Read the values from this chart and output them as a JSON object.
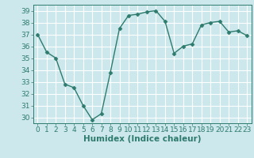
{
  "x": [
    0,
    1,
    2,
    3,
    4,
    5,
    6,
    7,
    8,
    9,
    10,
    11,
    12,
    13,
    14,
    15,
    16,
    17,
    18,
    19,
    20,
    21,
    22,
    23
  ],
  "y": [
    37.0,
    35.5,
    35.0,
    32.8,
    32.5,
    31.0,
    29.8,
    30.3,
    33.8,
    37.5,
    38.6,
    38.7,
    38.9,
    39.0,
    38.1,
    35.4,
    36.0,
    36.2,
    37.8,
    38.0,
    38.1,
    37.2,
    37.3,
    36.9
  ],
  "xlim": [
    -0.5,
    23.5
  ],
  "ylim": [
    29.5,
    39.5
  ],
  "yticks": [
    30,
    31,
    32,
    33,
    34,
    35,
    36,
    37,
    38,
    39
  ],
  "xticks": [
    0,
    1,
    2,
    3,
    4,
    5,
    6,
    7,
    8,
    9,
    10,
    11,
    12,
    13,
    14,
    15,
    16,
    17,
    18,
    19,
    20,
    21,
    22,
    23
  ],
  "xlabel": "Humidex (Indice chaleur)",
  "line_color": "#2e7b6e",
  "marker": "D",
  "marker_size": 2.5,
  "bg_color": "#cce8ec",
  "grid_color": "#ffffff",
  "tick_label_fontsize": 6.5,
  "xlabel_fontsize": 7.5
}
